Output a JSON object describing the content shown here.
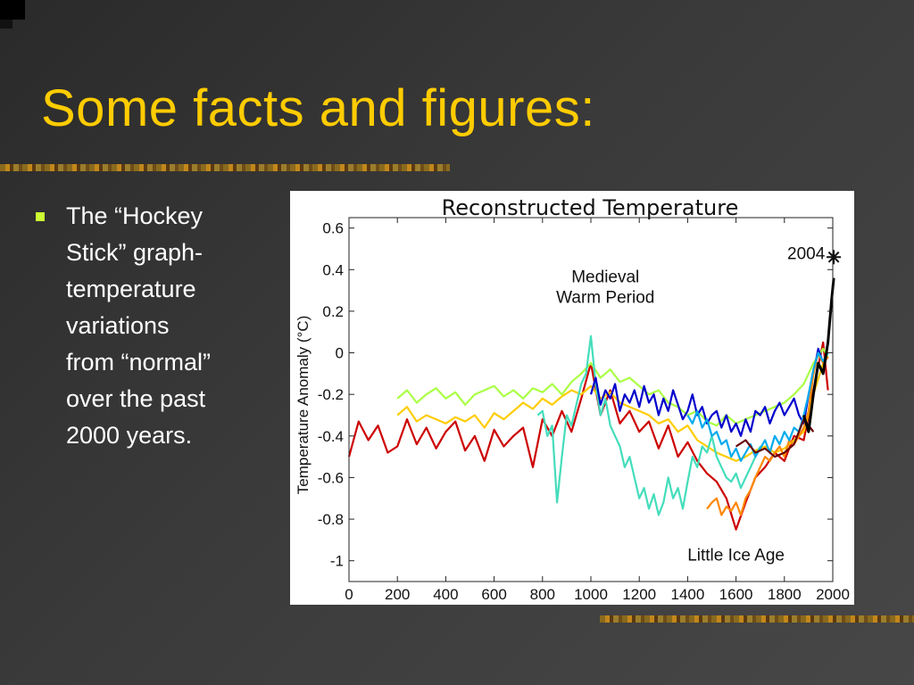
{
  "slide": {
    "title": "Some facts and figures:",
    "bullet": "The “Hockey\nStick” graph-\ntemperature\nvariations\nfrom “normal”\nover the past\n2000 years."
  },
  "chart_data": {
    "type": "line",
    "title": "Reconstructed Temperature",
    "xlabel": "",
    "ylabel": "Temperature Anomaly (°C)",
    "xlim": [
      0,
      2000
    ],
    "ylim": [
      -1.1,
      0.65
    ],
    "x_ticks": [
      0,
      200,
      400,
      600,
      800,
      1000,
      1200,
      1400,
      1600,
      1800,
      2000
    ],
    "y_ticks": [
      0.6,
      0.4,
      0.2,
      0,
      -0.2,
      -0.4,
      -0.6,
      -0.8,
      -1
    ],
    "grid": false,
    "annotations": [
      {
        "text": "Medieval",
        "x": 1060,
        "y": 0.34
      },
      {
        "text": "Warm Period",
        "x": 1060,
        "y": 0.24
      },
      {
        "text": "Little Ice Age",
        "x": 1600,
        "y": -1.0
      },
      {
        "text": "2004",
        "x": 1890,
        "y": 0.45
      }
    ],
    "marker_2004": {
      "x": 2004,
      "y": 0.46
    },
    "series": [
      {
        "color": "#cc0000",
        "x": [
          0,
          40,
          80,
          120,
          160,
          200,
          240,
          280,
          320,
          360,
          400,
          440,
          480,
          520,
          560,
          600,
          640,
          680,
          720,
          760,
          800,
          840,
          880,
          920,
          960,
          1000,
          1040,
          1080,
          1120,
          1160,
          1200,
          1240,
          1280,
          1320,
          1360,
          1400,
          1440,
          1480,
          1520,
          1560,
          1600,
          1640,
          1680,
          1720,
          1760,
          1800,
          1840,
          1880,
          1920,
          1960,
          1980
        ],
        "y": [
          -0.5,
          -0.33,
          -0.42,
          -0.35,
          -0.48,
          -0.45,
          -0.32,
          -0.44,
          -0.36,
          -0.46,
          -0.38,
          -0.33,
          -0.47,
          -0.4,
          -0.52,
          -0.37,
          -0.45,
          -0.4,
          -0.36,
          -0.55,
          -0.32,
          -0.4,
          -0.28,
          -0.38,
          -0.22,
          -0.05,
          -0.3,
          -0.18,
          -0.34,
          -0.28,
          -0.38,
          -0.33,
          -0.46,
          -0.35,
          -0.5,
          -0.43,
          -0.52,
          -0.58,
          -0.62,
          -0.7,
          -0.85,
          -0.72,
          -0.6,
          -0.55,
          -0.48,
          -0.52,
          -0.4,
          -0.42,
          -0.18,
          0.05,
          -0.18
        ]
      },
      {
        "color": "#ffcc00",
        "x": [
          200,
          240,
          280,
          320,
          360,
          400,
          440,
          480,
          520,
          560,
          600,
          640,
          680,
          720,
          760,
          800,
          840,
          880,
          920,
          960,
          1000,
          1040,
          1080,
          1120,
          1160,
          1200,
          1240,
          1280,
          1320,
          1360,
          1400,
          1440,
          1480,
          1520,
          1560,
          1600,
          1640,
          1680,
          1720,
          1760,
          1800,
          1840,
          1880,
          1920,
          1960,
          1980
        ],
        "y": [
          -0.3,
          -0.26,
          -0.33,
          -0.3,
          -0.32,
          -0.34,
          -0.31,
          -0.33,
          -0.3,
          -0.36,
          -0.29,
          -0.32,
          -0.28,
          -0.24,
          -0.27,
          -0.22,
          -0.25,
          -0.21,
          -0.18,
          -0.2,
          -0.16,
          -0.22,
          -0.19,
          -0.24,
          -0.26,
          -0.28,
          -0.3,
          -0.34,
          -0.32,
          -0.38,
          -0.35,
          -0.42,
          -0.45,
          -0.48,
          -0.5,
          -0.52,
          -0.5,
          -0.47,
          -0.45,
          -0.48,
          -0.46,
          -0.42,
          -0.38,
          -0.2,
          -0.05,
          -0.02
        ]
      },
      {
        "color": "#aaff44",
        "x": [
          200,
          240,
          280,
          320,
          360,
          400,
          440,
          480,
          520,
          560,
          600,
          640,
          680,
          720,
          760,
          800,
          840,
          880,
          920,
          960,
          1000,
          1040,
          1080,
          1120,
          1160,
          1200,
          1240,
          1280,
          1320,
          1360,
          1400,
          1440,
          1480,
          1520,
          1560,
          1600,
          1640,
          1680,
          1720,
          1760,
          1800,
          1840,
          1880,
          1920,
          1960,
          1980
        ],
        "y": [
          -0.22,
          -0.18,
          -0.24,
          -0.2,
          -0.17,
          -0.22,
          -0.19,
          -0.25,
          -0.2,
          -0.18,
          -0.16,
          -0.21,
          -0.18,
          -0.22,
          -0.17,
          -0.19,
          -0.15,
          -0.2,
          -0.14,
          -0.1,
          -0.05,
          -0.12,
          -0.08,
          -0.14,
          -0.12,
          -0.16,
          -0.2,
          -0.18,
          -0.24,
          -0.26,
          -0.3,
          -0.28,
          -0.33,
          -0.35,
          -0.3,
          -0.34,
          -0.32,
          -0.3,
          -0.28,
          -0.26,
          -0.24,
          -0.2,
          -0.15,
          -0.05,
          0.02,
          -0.02
        ]
      },
      {
        "color": "#44ddbb",
        "x": [
          780,
          800,
          820,
          840,
          860,
          880,
          900,
          920,
          940,
          960,
          980,
          1000,
          1020,
          1040,
          1060,
          1080,
          1100,
          1120,
          1140,
          1160,
          1180,
          1200,
          1220,
          1240,
          1260,
          1280,
          1300,
          1320,
          1340,
          1360,
          1380,
          1400,
          1420,
          1440,
          1460,
          1480,
          1500,
          1520,
          1540,
          1560,
          1580,
          1600,
          1620,
          1640,
          1660,
          1680,
          1700
        ],
        "y": [
          -0.3,
          -0.28,
          -0.4,
          -0.35,
          -0.72,
          -0.5,
          -0.3,
          -0.35,
          -0.25,
          -0.15,
          -0.1,
          0.08,
          -0.15,
          -0.3,
          -0.22,
          -0.35,
          -0.4,
          -0.45,
          -0.55,
          -0.5,
          -0.6,
          -0.7,
          -0.65,
          -0.75,
          -0.68,
          -0.78,
          -0.72,
          -0.6,
          -0.7,
          -0.65,
          -0.75,
          -0.62,
          -0.5,
          -0.55,
          -0.45,
          -0.48,
          -0.4,
          -0.5,
          -0.55,
          -0.6,
          -0.62,
          -0.58,
          -0.65,
          -0.6,
          -0.55,
          -0.5,
          -0.45
        ]
      },
      {
        "color": "#0000cc",
        "x": [
          1000,
          1020,
          1040,
          1060,
          1080,
          1100,
          1120,
          1140,
          1160,
          1180,
          1200,
          1220,
          1240,
          1260,
          1280,
          1300,
          1320,
          1340,
          1360,
          1380,
          1400,
          1420,
          1440,
          1460,
          1480,
          1500,
          1520,
          1540,
          1560,
          1580,
          1600,
          1620,
          1640,
          1660,
          1680,
          1700,
          1720,
          1740,
          1760,
          1780,
          1800,
          1820,
          1840,
          1860,
          1880,
          1900,
          1920,
          1940,
          1960,
          1980
        ],
        "y": [
          -0.2,
          -0.12,
          -0.25,
          -0.18,
          -0.22,
          -0.15,
          -0.28,
          -0.2,
          -0.24,
          -0.18,
          -0.26,
          -0.16,
          -0.24,
          -0.2,
          -0.3,
          -0.22,
          -0.28,
          -0.18,
          -0.25,
          -0.32,
          -0.28,
          -0.2,
          -0.3,
          -0.26,
          -0.34,
          -0.3,
          -0.28,
          -0.36,
          -0.3,
          -0.38,
          -0.34,
          -0.4,
          -0.32,
          -0.38,
          -0.28,
          -0.3,
          -0.26,
          -0.34,
          -0.28,
          -0.24,
          -0.3,
          -0.26,
          -0.22,
          -0.3,
          -0.34,
          -0.2,
          -0.1,
          0.02,
          -0.05,
          -0.02
        ]
      },
      {
        "color": "#ff8800",
        "x": [
          1480,
          1500,
          1520,
          1540,
          1560,
          1580,
          1600,
          1620,
          1640,
          1660,
          1680,
          1700,
          1720,
          1740,
          1760,
          1780,
          1800,
          1820,
          1840,
          1860,
          1880,
          1900,
          1920,
          1940,
          1960,
          1980
        ],
        "y": [
          -0.75,
          -0.72,
          -0.7,
          -0.78,
          -0.74,
          -0.76,
          -0.72,
          -0.78,
          -0.7,
          -0.66,
          -0.6,
          -0.55,
          -0.5,
          -0.52,
          -0.48,
          -0.45,
          -0.5,
          -0.42,
          -0.44,
          -0.4,
          -0.36,
          -0.28,
          -0.1,
          0.0,
          -0.05,
          -0.02
        ]
      },
      {
        "color": "#00aaee",
        "x": [
          1400,
          1420,
          1440,
          1460,
          1480,
          1500,
          1520,
          1540,
          1560,
          1580,
          1600,
          1620,
          1640,
          1660,
          1680,
          1700,
          1720,
          1740,
          1760,
          1780,
          1800,
          1820,
          1840,
          1860,
          1880,
          1900,
          1920,
          1940,
          1960,
          1980
        ],
        "y": [
          -0.3,
          -0.34,
          -0.28,
          -0.36,
          -0.32,
          -0.4,
          -0.38,
          -0.44,
          -0.42,
          -0.5,
          -0.46,
          -0.52,
          -0.48,
          -0.44,
          -0.5,
          -0.46,
          -0.42,
          -0.48,
          -0.4,
          -0.44,
          -0.38,
          -0.42,
          -0.36,
          -0.38,
          -0.3,
          -0.2,
          -0.08,
          0.0,
          -0.04,
          0.0
        ]
      },
      {
        "color": "#660000",
        "x": [
          1600,
          1640,
          1680,
          1720,
          1760,
          1800,
          1840,
          1880,
          1920
        ],
        "y": [
          -0.45,
          -0.42,
          -0.48,
          -0.46,
          -0.5,
          -0.48,
          -0.44,
          -0.32,
          -0.38
        ]
      },
      {
        "color": "#000000",
        "x": [
          1880,
          1900,
          1920,
          1940,
          1960,
          1980,
          1995,
          2004
        ],
        "y": [
          -0.3,
          -0.38,
          -0.2,
          -0.05,
          -0.1,
          0.05,
          0.25,
          0.36
        ]
      }
    ]
  }
}
